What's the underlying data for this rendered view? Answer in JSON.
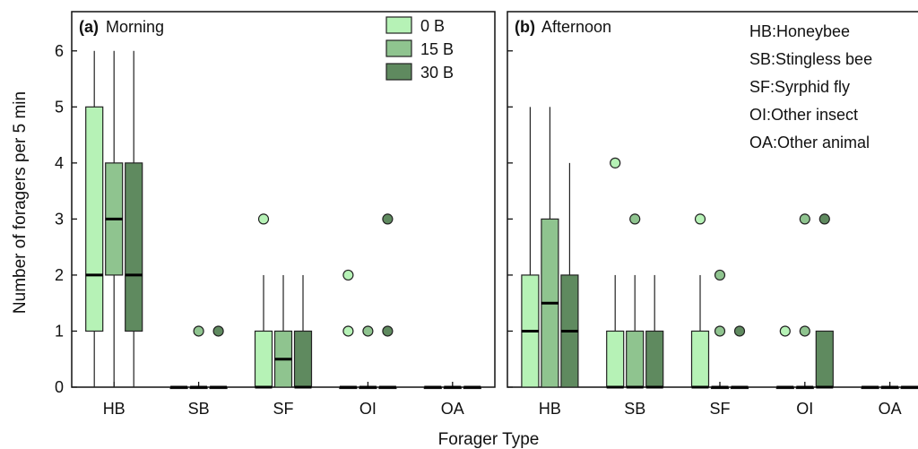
{
  "chart_data": {
    "type": "boxplot",
    "ylabel": "Number of foragers per 5 min",
    "xlabel": "Forager Type",
    "ylim": [
      0,
      6.7
    ],
    "yticks": [
      0,
      1,
      2,
      3,
      4,
      5,
      6
    ],
    "categories": [
      "HB",
      "SB",
      "SF",
      "OI",
      "OA"
    ],
    "legend": {
      "placement": "top-right of panel (a)",
      "entries": [
        {
          "label": "0   B",
          "color": "#b6f2b6"
        },
        {
          "label": "15 B",
          "color": "#8fc48f"
        },
        {
          "label": "30 B",
          "color": "#5f8a5f"
        }
      ]
    },
    "abbreviations": [
      "HB:Honeybee",
      "SB:Stingless bee",
      "SF:Syrphid fly",
      "OI:Other insect",
      "OA:Other animal"
    ],
    "panels": [
      {
        "label": "(a)",
        "title": "Morning",
        "groups": [
          {
            "category": "HB",
            "boxes": [
              {
                "min": 0,
                "q1": 1,
                "median": 2,
                "q3": 5,
                "max": 6,
                "outliers": []
              },
              {
                "min": 0,
                "q1": 2,
                "median": 3,
                "q3": 4,
                "max": 6,
                "outliers": []
              },
              {
                "min": 0,
                "q1": 1,
                "median": 2,
                "q3": 4,
                "max": 6,
                "outliers": []
              }
            ]
          },
          {
            "category": "SB",
            "boxes": [
              {
                "min": 0,
                "q1": 0,
                "median": 0,
                "q3": 0,
                "max": 0,
                "outliers": []
              },
              {
                "min": 0,
                "q1": 0,
                "median": 0,
                "q3": 0,
                "max": 0,
                "outliers": [
                  1
                ]
              },
              {
                "min": 0,
                "q1": 0,
                "median": 0,
                "q3": 0,
                "max": 0,
                "outliers": [
                  1
                ]
              }
            ]
          },
          {
            "category": "SF",
            "boxes": [
              {
                "min": 0,
                "q1": 0,
                "median": 0,
                "q3": 1,
                "max": 2,
                "outliers": [
                  3
                ]
              },
              {
                "min": 0,
                "q1": 0,
                "median": 0.5,
                "q3": 1,
                "max": 2,
                "outliers": []
              },
              {
                "min": 0,
                "q1": 0,
                "median": 0,
                "q3": 1,
                "max": 2,
                "outliers": []
              }
            ]
          },
          {
            "category": "OI",
            "boxes": [
              {
                "min": 0,
                "q1": 0,
                "median": 0,
                "q3": 0,
                "max": 0,
                "outliers": [
                  1,
                  2
                ]
              },
              {
                "min": 0,
                "q1": 0,
                "median": 0,
                "q3": 0,
                "max": 0,
                "outliers": [
                  1
                ]
              },
              {
                "min": 0,
                "q1": 0,
                "median": 0,
                "q3": 0,
                "max": 0,
                "outliers": [
                  1,
                  3
                ]
              }
            ]
          },
          {
            "category": "OA",
            "boxes": [
              {
                "min": 0,
                "q1": 0,
                "median": 0,
                "q3": 0,
                "max": 0,
                "outliers": []
              },
              {
                "min": 0,
                "q1": 0,
                "median": 0,
                "q3": 0,
                "max": 0,
                "outliers": []
              },
              {
                "min": 0,
                "q1": 0,
                "median": 0,
                "q3": 0,
                "max": 0,
                "outliers": []
              }
            ]
          }
        ]
      },
      {
        "label": "(b)",
        "title": "Afternoon",
        "groups": [
          {
            "category": "HB",
            "boxes": [
              {
                "min": 0,
                "q1": 0,
                "median": 1,
                "q3": 2,
                "max": 5,
                "outliers": []
              },
              {
                "min": 0,
                "q1": 0,
                "median": 1.5,
                "q3": 3,
                "max": 5,
                "outliers": []
              },
              {
                "min": 0,
                "q1": 0,
                "median": 1,
                "q3": 2,
                "max": 4,
                "outliers": []
              }
            ]
          },
          {
            "category": "SB",
            "boxes": [
              {
                "min": 0,
                "q1": 0,
                "median": 0,
                "q3": 1,
                "max": 2,
                "outliers": [
                  4
                ]
              },
              {
                "min": 0,
                "q1": 0,
                "median": 0,
                "q3": 1,
                "max": 2,
                "outliers": [
                  3
                ]
              },
              {
                "min": 0,
                "q1": 0,
                "median": 0,
                "q3": 1,
                "max": 2,
                "outliers": []
              }
            ]
          },
          {
            "category": "SF",
            "boxes": [
              {
                "min": 0,
                "q1": 0,
                "median": 0,
                "q3": 1,
                "max": 2,
                "outliers": [
                  3
                ]
              },
              {
                "min": 0,
                "q1": 0,
                "median": 0,
                "q3": 0,
                "max": 0,
                "outliers": [
                  1,
                  2
                ]
              },
              {
                "min": 0,
                "q1": 0,
                "median": 0,
                "q3": 0,
                "max": 0,
                "outliers": [
                  1
                ]
              }
            ]
          },
          {
            "category": "OI",
            "boxes": [
              {
                "min": 0,
                "q1": 0,
                "median": 0,
                "q3": 0,
                "max": 0,
                "outliers": [
                  1
                ]
              },
              {
                "min": 0,
                "q1": 0,
                "median": 0,
                "q3": 0,
                "max": 0,
                "outliers": [
                  1,
                  3
                ]
              },
              {
                "min": 0,
                "q1": 0,
                "median": 0,
                "q3": 1,
                "max": 1,
                "outliers": [
                  3
                ]
              }
            ]
          },
          {
            "category": "OA",
            "boxes": [
              {
                "min": 0,
                "q1": 0,
                "median": 0,
                "q3": 0,
                "max": 0,
                "outliers": []
              },
              {
                "min": 0,
                "q1": 0,
                "median": 0,
                "q3": 0,
                "max": 0,
                "outliers": []
              },
              {
                "min": 0,
                "q1": 0,
                "median": 0,
                "q3": 0,
                "max": 0,
                "outliers": []
              }
            ]
          }
        ]
      }
    ]
  }
}
